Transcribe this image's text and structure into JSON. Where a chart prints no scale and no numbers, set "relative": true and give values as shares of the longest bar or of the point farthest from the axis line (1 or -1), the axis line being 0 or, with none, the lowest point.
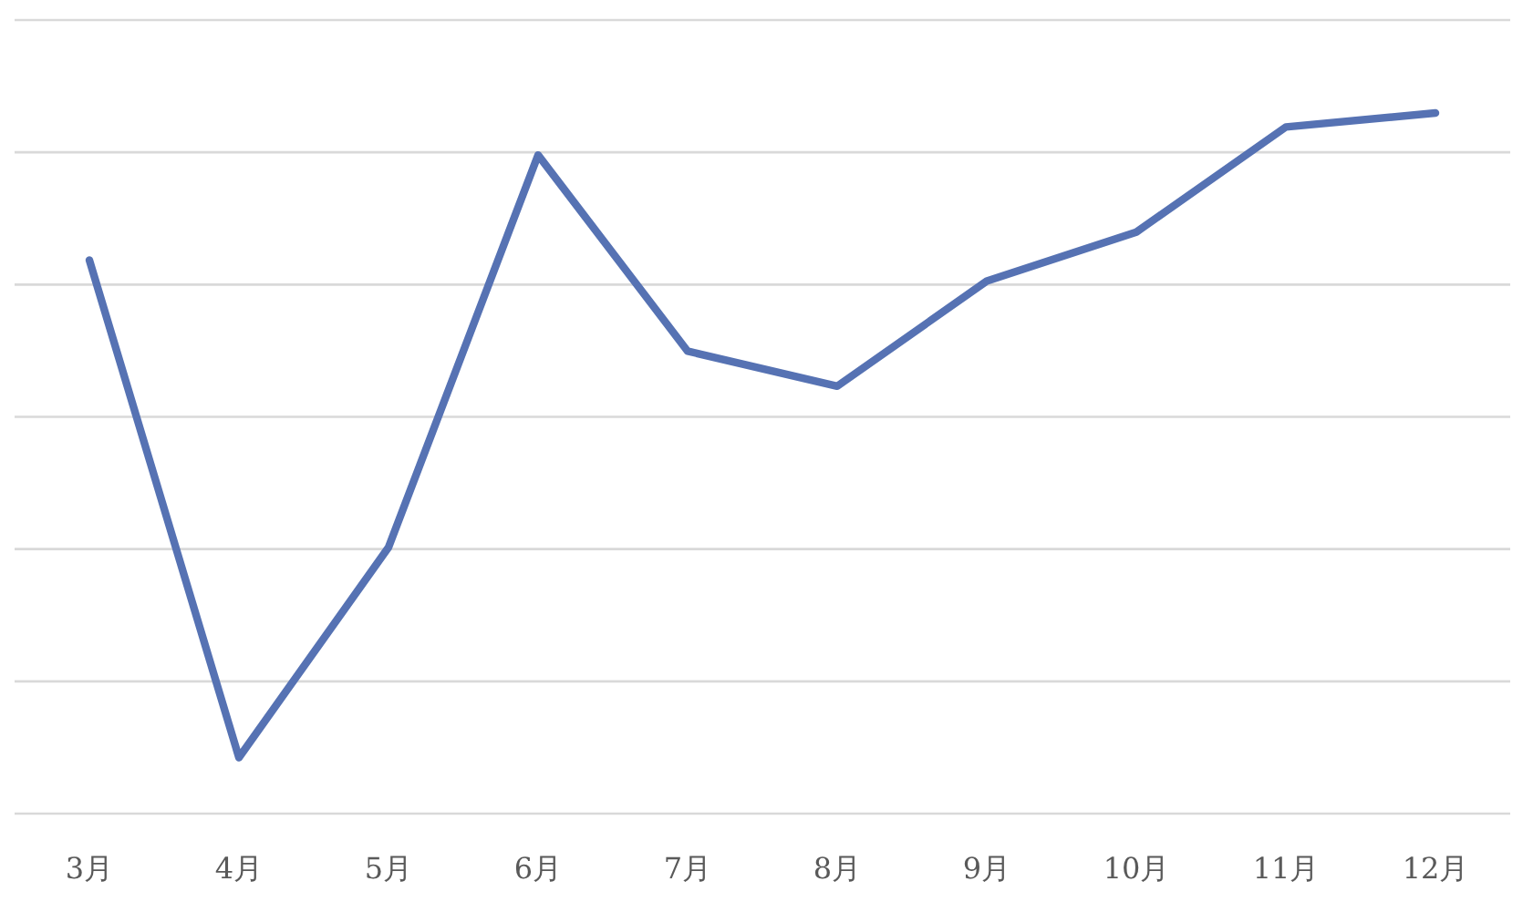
{
  "chart_data": {
    "type": "line",
    "relative": true,
    "grid": "y",
    "color": "#5672b3",
    "categories": [
      "3月",
      "4月",
      "5月",
      "6月",
      "7月",
      "8月",
      "9月",
      "10月",
      "11月",
      "12月"
    ],
    "values": [
      0.79,
      0.08,
      0.38,
      0.94,
      0.66,
      0.61,
      0.76,
      0.83,
      0.98,
      1
    ]
  }
}
